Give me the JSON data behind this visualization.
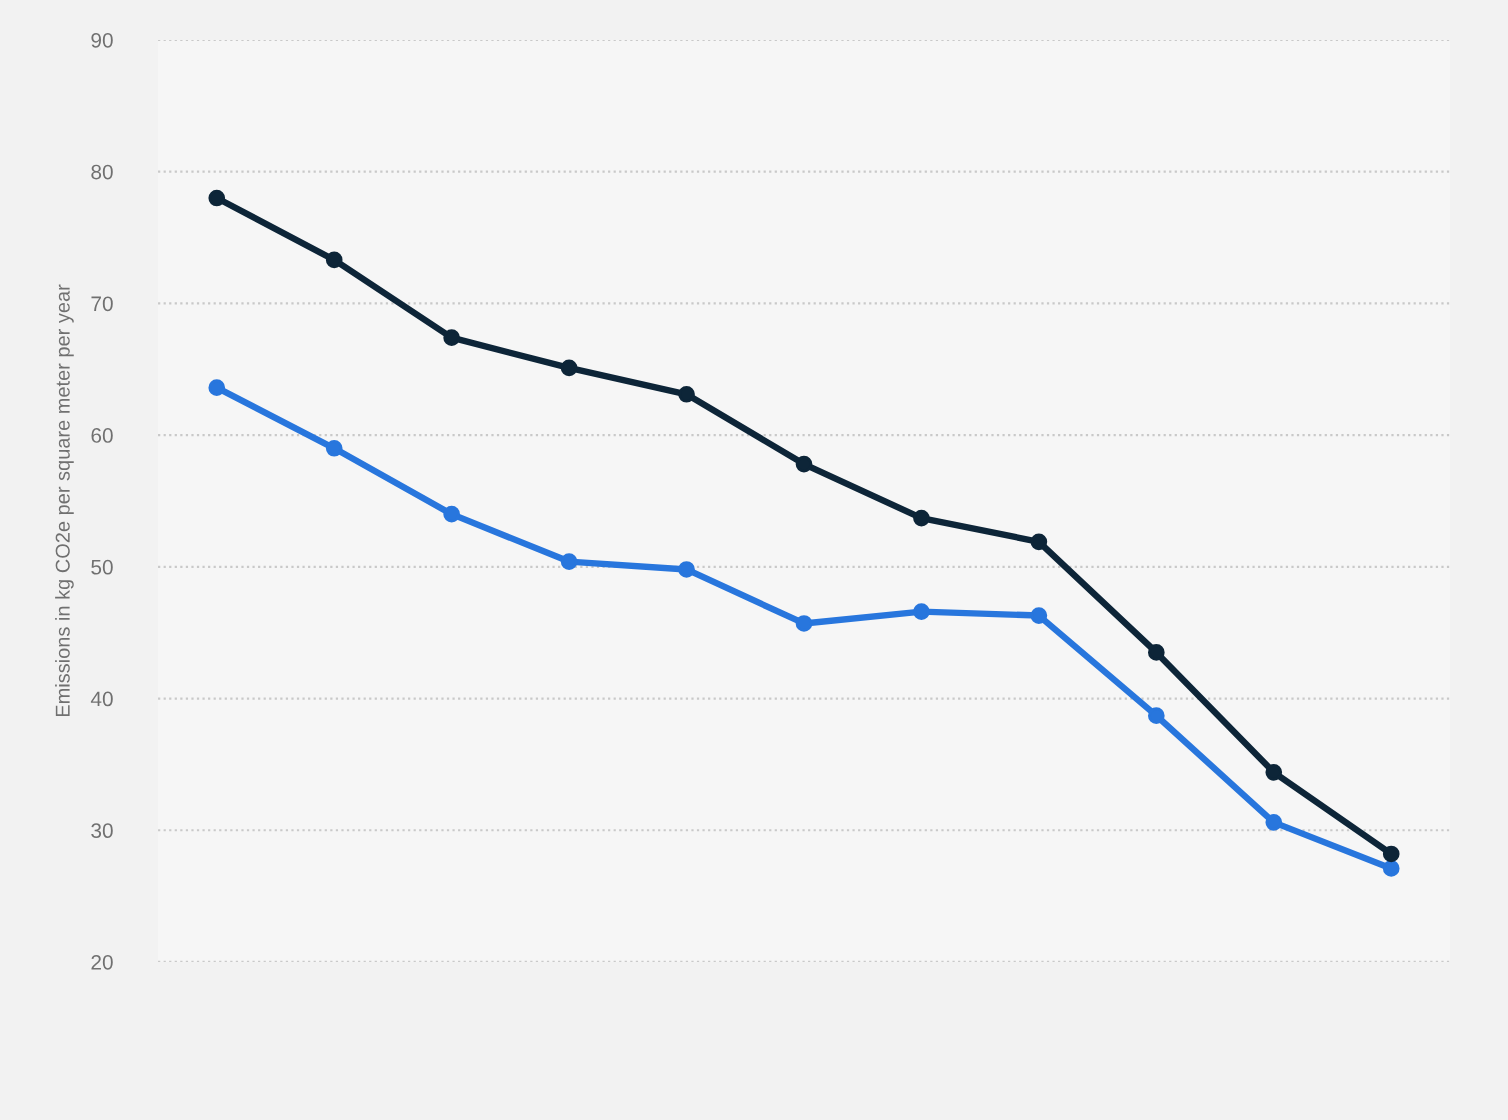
{
  "chart_data": {
    "type": "line",
    "ylabel": "Emissions in kg CO2e per square meter per year",
    "categories": [
      null,
      null,
      null,
      null,
      null,
      null,
      null,
      null,
      null,
      null,
      null
    ],
    "series": [
      {
        "color": "#2876dd",
        "values": [
          63.6,
          59.0,
          54.0,
          50.4,
          49.8,
          45.7,
          46.6,
          46.3,
          38.7,
          30.6,
          27.1
        ]
      },
      {
        "color": "#0d2538",
        "values": [
          78.0,
          73.3,
          67.4,
          65.1,
          63.1,
          57.8,
          53.7,
          51.9,
          43.5,
          34.4,
          28.2
        ]
      }
    ],
    "ylim": [
      20,
      90
    ],
    "yticks": [
      20,
      30,
      40,
      50,
      60,
      70,
      80,
      90
    ],
    "grid": "y",
    "tick_labels": "y",
    "marker": "circle",
    "line_style": "solid"
  }
}
